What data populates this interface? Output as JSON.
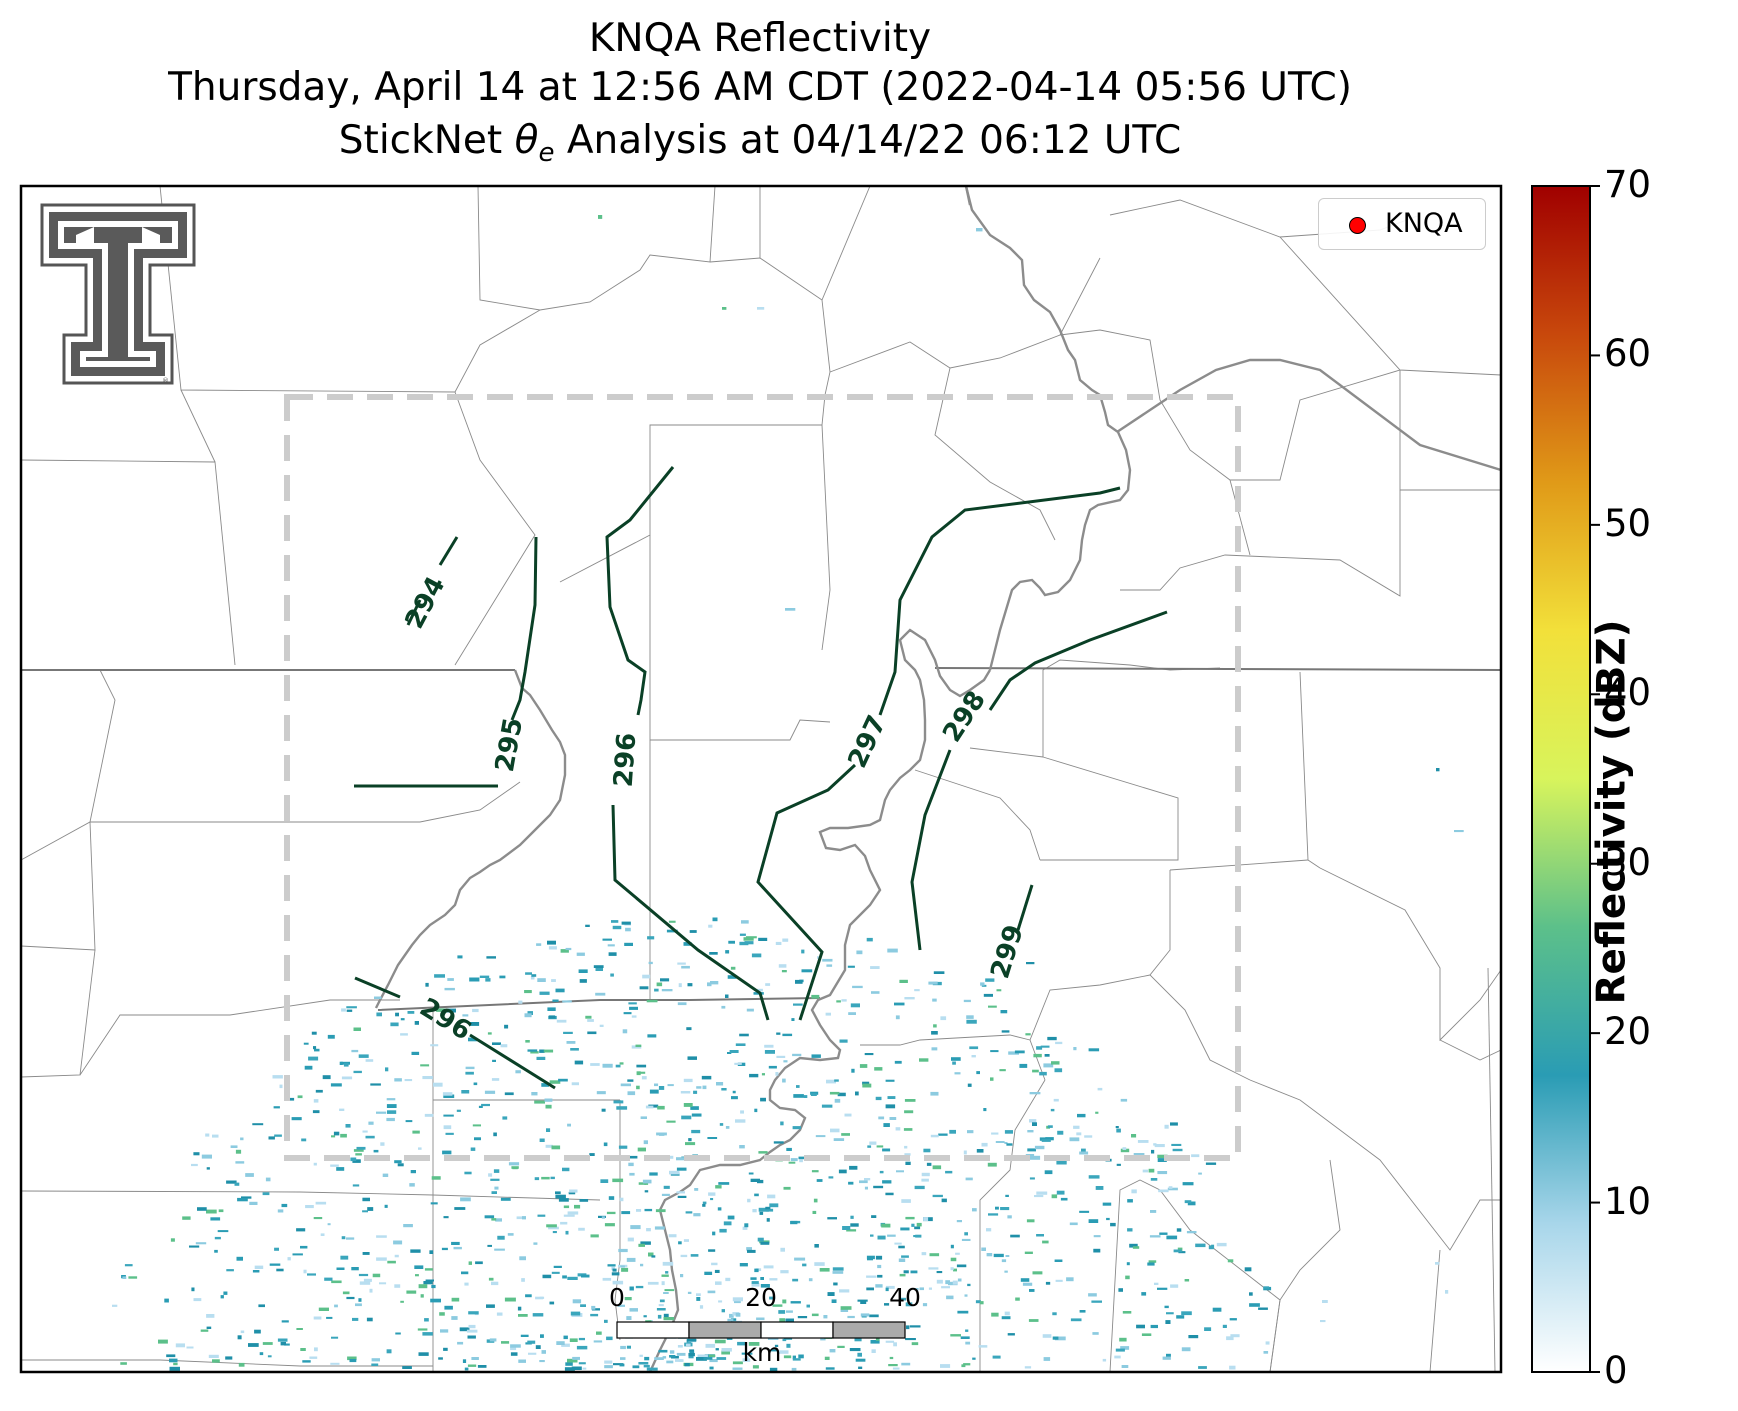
{
  "title": {
    "line1": "KNQA Reflectivity",
    "line2": "Thursday, April 14 at 12:56 AM CDT (2022-04-14 05:56 UTC)",
    "line3_prefix": "StickNet ",
    "line3_symbol": "θ",
    "line3_sub": "e",
    "line3_suffix": " Analysis at 04/14/22 06:12 UTC"
  },
  "legend": {
    "station": "KNQA",
    "marker_color": "#ff0000"
  },
  "colorbar": {
    "label": "Reflectivity (dBZ)",
    "ticks": [
      "0",
      "10",
      "20",
      "30",
      "40",
      "50",
      "60",
      "70"
    ],
    "range": [
      0,
      70
    ],
    "stops": [
      "#ffffff",
      "#a8d6ea",
      "#2a9cb4",
      "#5cc08a",
      "#d8f45c",
      "#f2e03a",
      "#e09a18",
      "#c8480c",
      "#a00000"
    ]
  },
  "contours": {
    "color": "#0a4026",
    "labels": [
      "294",
      "295",
      "296",
      "297",
      "298",
      "299",
      "296"
    ]
  },
  "scalebar": {
    "ticks": [
      "0",
      "20",
      "40"
    ],
    "unit": "km"
  },
  "logo": {
    "name": "Texas Tech Double T"
  }
}
